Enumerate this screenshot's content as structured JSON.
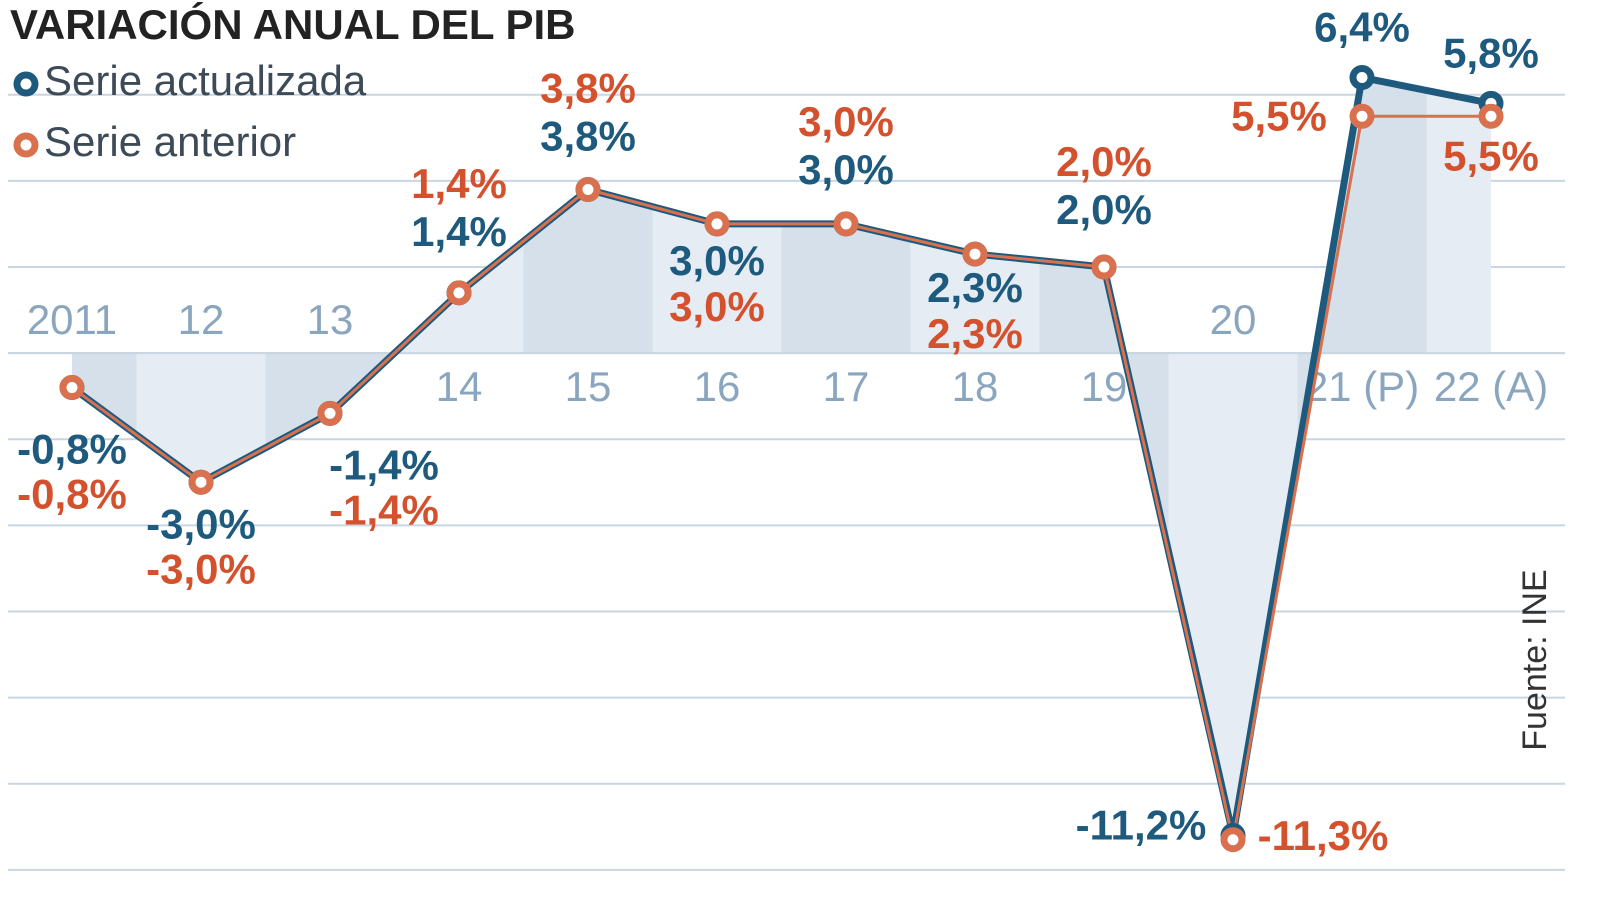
{
  "chart_data": {
    "type": "line",
    "title": "VARIACIÓN ANUAL DEL PIB",
    "source": "Fuente: INE",
    "categories": [
      "2011",
      "12",
      "13",
      "14",
      "15",
      "16",
      "17",
      "18",
      "19",
      "20",
      "21 (P)",
      "22 (A)"
    ],
    "series": [
      {
        "name": "Serie actualizada",
        "color": "#1e5a7e",
        "values": [
          -0.8,
          -3.0,
          -1.4,
          1.4,
          3.8,
          3.0,
          3.0,
          2.3,
          2.0,
          -11.2,
          6.4,
          5.8
        ],
        "value_labels": [
          "-0,8%",
          "-3,0%",
          "-1,4%",
          "1,4%",
          "3,8%",
          "3,0%",
          "3,0%",
          "2,3%",
          "2,0%",
          "-11,2%",
          "6,4%",
          "5,8%"
        ]
      },
      {
        "name": "Serie anterior",
        "color": "#d9704e",
        "values": [
          -0.8,
          -3.0,
          -1.4,
          1.4,
          3.8,
          3.0,
          3.0,
          2.3,
          2.0,
          -11.3,
          5.5,
          5.5
        ],
        "value_labels": [
          "-0,8%",
          "-3,0%",
          "-1,4%",
          "1,4%",
          "3,8%",
          "3,0%",
          "3,0%",
          "2,3%",
          "2,0%",
          "-11,3%",
          "5,5%",
          "5,5%"
        ]
      }
    ],
    "ylim": [
      -12.7,
      8.2
    ],
    "yticks": [
      -12,
      -10,
      -8,
      -6,
      -4,
      -2,
      0,
      2,
      4,
      6
    ],
    "grid": true
  }
}
